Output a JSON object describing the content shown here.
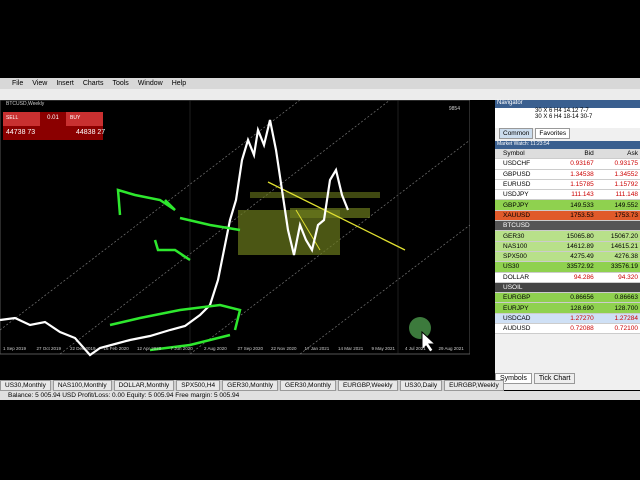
{
  "menu": [
    "File",
    "View",
    "Insert",
    "Charts",
    "Tools",
    "Window",
    "Help"
  ],
  "chart": {
    "title": "BTCUSD,Weekly",
    "corner": "9854",
    "sell": "SELL",
    "buy": "BUY",
    "lot": "0.01",
    "sell_price": "44738 73",
    "buy_price": "44838 27",
    "dates": [
      "1 Sep 2019",
      "27 Oct 2019",
      "22 Dec 2019",
      "16 Feb 2020",
      "12 Apr 2020",
      "7 Jun 2020",
      "2 Aug 2020",
      "27 Sep 2020",
      "22 Nov 2020",
      "17 Jan 2021",
      "14 Mar 2021",
      "9 May 2021",
      "4 Jul 2021",
      "29 Aug 2021"
    ]
  },
  "navigator": {
    "title": "Navigator",
    "items": [
      "30 X 6 H4 14.12 7-7",
      "30 X 6 H4 18-14 30-7"
    ],
    "tabs": [
      "Common",
      "Favorites"
    ]
  },
  "market_watch": {
    "title": "Market Watch: 11:23:54",
    "headers": [
      "Symbol",
      "Bid",
      "Ask"
    ],
    "rows": [
      [
        "USDCHF",
        "0.93167",
        "0.93175"
      ],
      [
        "GBPUSD",
        "1.34538",
        "1.34552"
      ],
      [
        "EURUSD",
        "1.15785",
        "1.15792"
      ],
      [
        "USDJPY",
        "111.143",
        "111.148"
      ],
      [
        "GBPJPY",
        "149.533",
        "149.552"
      ],
      [
        "XAUUSD",
        "1753.53",
        "1753.73"
      ],
      [
        "BTCUSD"
      ],
      [
        "GER30",
        "15065.80",
        "15067.20"
      ],
      [
        "NAS100",
        "14612.89",
        "14615.21"
      ],
      [
        "SPX500",
        "4275.49",
        "4276.38"
      ],
      [
        "US30",
        "33572.92",
        "33576.19"
      ],
      [
        "DOLLAR",
        "94.286",
        "94.320"
      ],
      [
        "USOIL"
      ],
      [
        "EURGBP",
        "0.86656",
        "0.86663"
      ],
      [
        "EURJPY",
        "128.690",
        "128.700"
      ],
      [
        "USDCAD",
        "1.27270",
        "1.27284"
      ],
      [
        "AUDUSD",
        "0.72088",
        "0.72100"
      ]
    ],
    "tabs": [
      "Symbols",
      "Tick Chart"
    ]
  },
  "chart_tabs": [
    "US30,Monthly",
    "NAS100,Monthly",
    "DOLLAR,Monthly",
    "SPX500,H4",
    "GER30,Monthly",
    "GER30,Monthly",
    "EURGBP,Weekly",
    "US30,Daily",
    "EURGBP,Weekly"
  ],
  "status": "Balance: 5 005.94 USD  Profit/Loss: 0.00  Equity: 5 005.94  Free margin: 5 005.94"
}
